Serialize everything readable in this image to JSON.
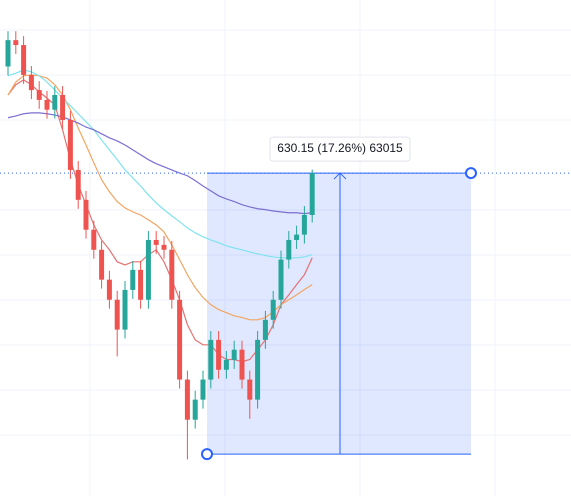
{
  "chart_data": {
    "type": "candlestick",
    "ylim": [
      3557,
      4669
    ],
    "up_color": "#26a69a",
    "down_color": "#ef5350",
    "open": [
      4520,
      4579,
      4568,
      4501,
      4467,
      4445,
      4423,
      4456,
      4400,
      4288,
      4221,
      4154,
      4109,
      4042,
      3997,
      3930,
      4019,
      4064,
      3997,
      4131,
      4120,
      4109,
      3997,
      3818,
      3728,
      3773,
      3818,
      3907,
      3840,
      3862,
      3885,
      3818,
      3773,
      3907,
      3952,
      3997,
      4087,
      4131,
      4143,
      4187
    ],
    "high": [
      4599,
      4599,
      4588,
      4521,
      4487,
      4465,
      4476,
      4476,
      4420,
      4308,
      4241,
      4174,
      4129,
      4062,
      4017,
      4039,
      4084,
      4084,
      4151,
      4151,
      4140,
      4129,
      4017,
      3838,
      3793,
      3838,
      3927,
      3927,
      3882,
      3905,
      3905,
      3838,
      3927,
      3972,
      4017,
      4107,
      4151,
      4163,
      4207,
      4289
    ],
    "low": [
      4500,
      4548,
      4481,
      4447,
      4425,
      4403,
      4403,
      4380,
      4268,
      4201,
      4134,
      4089,
      4022,
      3977,
      3870,
      3910,
      3999,
      3977,
      3977,
      4100,
      4089,
      3977,
      3798,
      3639,
      3708,
      3753,
      3798,
      3820,
      3820,
      3842,
      3798,
      3730,
      3753,
      3887,
      3932,
      3977,
      4067,
      4111,
      4123,
      4170
    ],
    "close": [
      4579,
      4568,
      4501,
      4467,
      4445,
      4423,
      4456,
      4400,
      4288,
      4221,
      4154,
      4109,
      4042,
      3997,
      3930,
      4019,
      4064,
      3997,
      4131,
      4120,
      4109,
      3997,
      3818,
      3728,
      3773,
      3818,
      3907,
      3840,
      3862,
      3885,
      3818,
      3773,
      3907,
      3952,
      3997,
      4087,
      4131,
      4143,
      4187,
      4281
    ],
    "series": [
      {
        "color": "#e57373",
        "values": [
          4456,
          4479,
          4490,
          4479,
          4463,
          4449,
          4434,
          4378,
          4311,
          4255,
          4210,
          4165,
          4131,
          4109,
          4082,
          4075,
          4082,
          4082,
          4098,
          4109,
          4082,
          4042,
          3997,
          3941,
          3907,
          3896,
          3896,
          3874,
          3863,
          3863,
          3858,
          3863,
          3885,
          3907,
          3941,
          3986,
          4008,
          4031,
          4053,
          4091
        ]
      },
      {
        "color": "#f4a460",
        "values": [
          4456,
          4485,
          4499,
          4501,
          4499,
          4494,
          4479,
          4456,
          4423,
          4382,
          4344,
          4304,
          4266,
          4239,
          4217,
          4203,
          4194,
          4187,
          4176,
          4165,
          4149,
          4120,
          4087,
          4053,
          4024,
          4002,
          3986,
          3975,
          3968,
          3961,
          3957,
          3952,
          3952,
          3957,
          3970,
          3986,
          3997,
          4008,
          4020,
          4031
        ]
      },
      {
        "color": "#7fe3ef",
        "values": [
          4499,
          4505,
          4512,
          4508,
          4499,
          4485,
          4467,
          4449,
          4432,
          4414,
          4396,
          4378,
          4355,
          4333,
          4311,
          4288,
          4270,
          4252,
          4232,
          4214,
          4199,
          4185,
          4172,
          4158,
          4147,
          4138,
          4131,
          4125,
          4118,
          4113,
          4109,
          4104,
          4100,
          4096,
          4093,
          4091,
          4091,
          4091,
          4093,
          4098
        ]
      },
      {
        "color": "#7b6fd0",
        "values": [
          4405,
          4409,
          4414,
          4416,
          4416,
          4414,
          4411,
          4407,
          4400,
          4393,
          4384,
          4378,
          4369,
          4360,
          4353,
          4344,
          4333,
          4322,
          4311,
          4302,
          4295,
          4288,
          4281,
          4275,
          4264,
          4252,
          4241,
          4230,
          4223,
          4217,
          4210,
          4205,
          4201,
          4199,
          4196,
          4194,
          4192,
          4192,
          4190,
          4192
        ]
      }
    ],
    "measure": {
      "start": 3650.85,
      "end": 4281,
      "label": "630.15 (17.26%) 63015",
      "color": "#2962ff"
    }
  }
}
